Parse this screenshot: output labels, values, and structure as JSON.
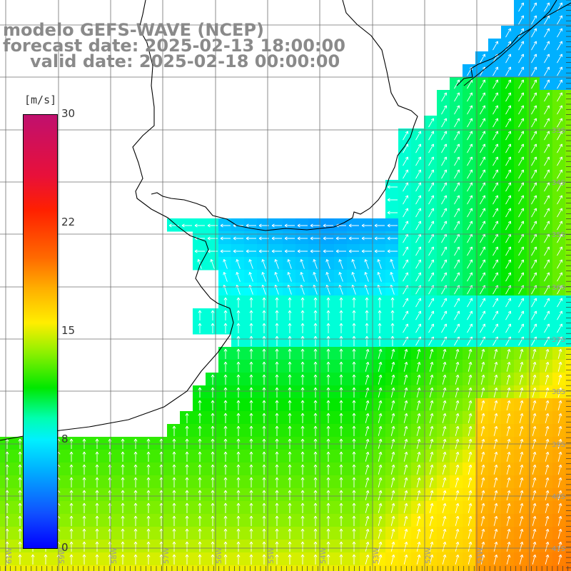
{
  "title": {
    "model": "modelo GEFS-WAVE (NCEP)",
    "forecast": "forecast date: 2025-02-13 18:00:00",
    "valid": "valid date: 2025-02-18 00:00:00"
  },
  "colorbar": {
    "unit": "[m/s]",
    "ticks": [
      "30",
      "22",
      "15",
      "8",
      "0"
    ],
    "tick_values": [
      30,
      22,
      15,
      8,
      0
    ],
    "gradient_colors": [
      "#c0106e",
      "#ff2000",
      "#ff6a00",
      "#ffee00",
      "#00e800",
      "#00ffff",
      "#1060ff",
      "#0000ff"
    ]
  },
  "map": {
    "lon_labels": [
      "61W",
      "59W",
      "58W",
      "57W",
      "56W",
      "55W",
      "54W",
      "53W",
      "52W",
      "51W"
    ],
    "lat_labels": [
      "33S",
      "34S",
      "35S",
      "36S",
      "37S",
      "38S",
      "39S",
      "40S",
      "41S"
    ],
    "field": "wind speed with direction arrows",
    "land_color": "#ffffff",
    "coast_color": "#000000",
    "grid_color": "#7a7a7a"
  }
}
